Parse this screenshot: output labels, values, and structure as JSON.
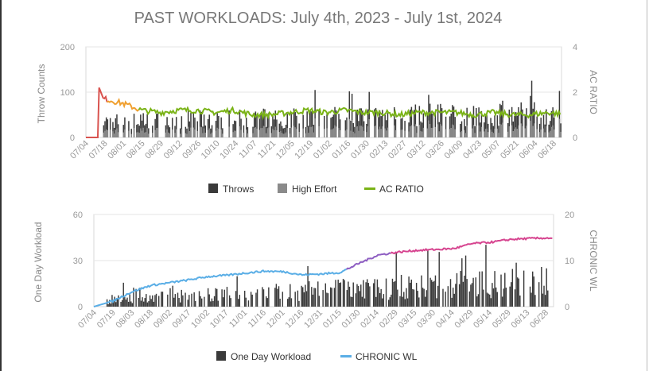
{
  "page": {
    "title": "PAST WORKLOADS: July 4th, 2023 - July 1st, 2024"
  },
  "chart_data": [
    {
      "type": "bar+line",
      "title": "",
      "ylabel": "Throw Counts",
      "y2label": "AC RATIO",
      "ylim": [
        0,
        200
      ],
      "y2lim": [
        0,
        4
      ],
      "yticks": [
        "0",
        "100",
        "200"
      ],
      "y2ticks": [
        "0",
        "2",
        "4"
      ],
      "grid": true,
      "legend_position": "bottom",
      "x_ticks": [
        "07/04",
        "07/18",
        "08/01",
        "08/15",
        "08/29",
        "09/12",
        "09/26",
        "10/10",
        "10/24",
        "11/07",
        "11/21",
        "12/05",
        "12/19",
        "01/02",
        "01/16",
        "01/30",
        "02/13",
        "02/27",
        "03/12",
        "03/26",
        "04/09",
        "04/23",
        "05/07",
        "05/21",
        "06/04",
        "06/18"
      ],
      "legend": [
        {
          "name": "Throws",
          "color": "#3a3a3a"
        },
        {
          "name": "High Effort",
          "color": "#8a8a8a"
        },
        {
          "name": "AC RATIO",
          "color": "#7ab317"
        }
      ],
      "series": [
        {
          "name": "Throws",
          "type": "bar",
          "note": "daily throw counts",
          "approx_range": [
            0,
            150
          ]
        },
        {
          "name": "High Effort",
          "type": "bar",
          "approx_range": [
            0,
            50
          ]
        },
        {
          "name": "AC RATIO",
          "type": "line",
          "values_sampled_every_14_days": [
            0.0,
            1.7,
            1.5,
            1.2,
            1.1,
            1.2,
            1.2,
            1.1,
            1.2,
            1.0,
            1.0,
            1.1,
            1.2,
            1.1,
            1.2,
            1.1,
            1.1,
            1.0,
            1.1,
            1.1,
            1.1,
            1.0,
            1.1,
            1.0,
            1.0,
            1.1,
            1.0
          ]
        }
      ]
    },
    {
      "type": "bar+line",
      "title": "",
      "ylabel": "One Day Workload",
      "y2label": "CHRONIC WL",
      "ylim": [
        0,
        60
      ],
      "y2lim": [
        0,
        20
      ],
      "yticks": [
        "0",
        "30",
        "60"
      ],
      "y2ticks": [
        "0",
        "10",
        "20"
      ],
      "grid": true,
      "legend_position": "bottom",
      "x_ticks": [
        "07/04",
        "07/19",
        "08/03",
        "08/18",
        "09/02",
        "09/17",
        "10/02",
        "10/17",
        "11/01",
        "11/16",
        "12/01",
        "12/16",
        "12/31",
        "01/15",
        "01/30",
        "02/14",
        "02/29",
        "03/15",
        "03/30",
        "04/14",
        "04/29",
        "05/14",
        "05/29",
        "06/13",
        "06/28"
      ],
      "legend": [
        {
          "name": "One Day Workload",
          "color": "#3a3a3a"
        },
        {
          "name": "CHRONIC WL",
          "color": "#5aaee6"
        }
      ],
      "series": [
        {
          "name": "One Day Workload",
          "type": "bar",
          "approx_range": [
            0,
            45
          ]
        },
        {
          "name": "CHRONIC WL",
          "type": "line",
          "values_sampled_every_15_days": [
            0.0,
            1.2,
            3.2,
            4.6,
            5.2,
            5.8,
            6.5,
            6.8,
            7.3,
            7.7,
            7.6,
            6.9,
            7.1,
            7.4,
            9.4,
            11.2,
            11.8,
            12.2,
            12.4,
            12.6,
            13.7,
            14.0,
            14.6,
            14.8,
            14.9,
            14.7
          ]
        }
      ]
    }
  ]
}
